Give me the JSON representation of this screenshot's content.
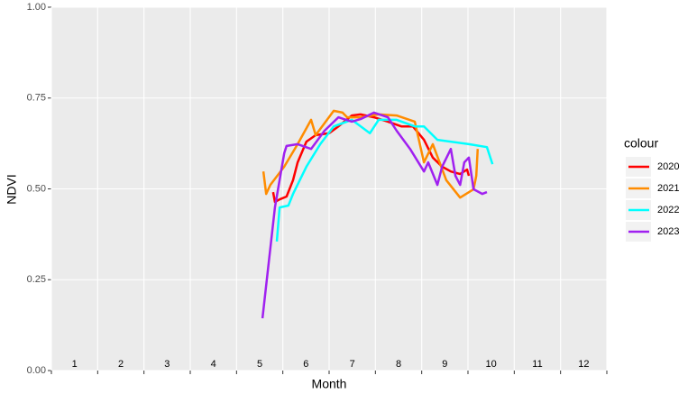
{
  "chart_data": {
    "type": "line",
    "x_label": "Month",
    "y_label": "NDVI",
    "legend_title": "colour",
    "categories": [
      "1",
      "2",
      "3",
      "4",
      "5",
      "6",
      "7",
      "8",
      "9",
      "10",
      "11",
      "12"
    ],
    "xlim": [
      0,
      12
    ],
    "xticks": [
      0,
      1,
      2,
      3,
      4,
      5,
      6,
      7,
      8,
      9,
      10,
      11,
      12
    ],
    "ylim": [
      0,
      1
    ],
    "yticks": [
      {
        "value": 0,
        "label": "0.00"
      },
      {
        "value": 0.25,
        "label": "0.25"
      },
      {
        "value": 0.5,
        "label": "0.50"
      },
      {
        "value": 0.75,
        "label": "0.75"
      },
      {
        "value": 1,
        "label": "1.00"
      }
    ],
    "grid": true,
    "series": [
      {
        "name": "2020",
        "color": "#ff0000",
        "x": [
          4.79,
          4.83,
          4.93,
          5.08,
          5.22,
          5.32,
          5.51,
          5.71,
          6.0,
          6.2,
          6.49,
          6.68,
          6.97,
          7.27,
          7.56,
          7.81,
          8.05,
          8.24,
          8.44,
          8.63,
          8.83,
          8.98,
          9.02
        ],
        "values": [
          0.491,
          0.464,
          0.471,
          0.479,
          0.524,
          0.573,
          0.63,
          0.648,
          0.653,
          0.672,
          0.702,
          0.705,
          0.697,
          0.685,
          0.672,
          0.672,
          0.635,
          0.586,
          0.561,
          0.548,
          0.541,
          0.553,
          0.536
        ]
      },
      {
        "name": "2021",
        "color": "#ff8c00",
        "x": [
          4.58,
          4.64,
          4.73,
          5.03,
          5.32,
          5.61,
          5.71,
          6.1,
          6.29,
          6.39,
          6.68,
          7.07,
          7.46,
          7.85,
          8.05,
          8.24,
          8.53,
          8.83,
          9.12,
          9.18,
          9.21
        ],
        "values": [
          0.548,
          0.486,
          0.511,
          0.561,
          0.623,
          0.69,
          0.648,
          0.715,
          0.71,
          0.697,
          0.697,
          0.705,
          0.702,
          0.685,
          0.573,
          0.623,
          0.524,
          0.476,
          0.499,
          0.536,
          0.61
        ]
      },
      {
        "name": "2022",
        "color": "#00ffff",
        "x": [
          4.87,
          4.93,
          5.12,
          5.22,
          5.51,
          5.81,
          6.1,
          6.49,
          6.88,
          7.07,
          7.46,
          7.85,
          8.05,
          8.34,
          9.02,
          9.41,
          9.53
        ],
        "values": [
          0.355,
          0.449,
          0.454,
          0.486,
          0.561,
          0.623,
          0.672,
          0.69,
          0.653,
          0.69,
          0.69,
          0.672,
          0.672,
          0.635,
          0.623,
          0.615,
          0.568
        ]
      },
      {
        "name": "2023",
        "color": "#a020f0",
        "x": [
          4.56,
          4.83,
          5.03,
          5.08,
          5.32,
          5.61,
          5.9,
          6.2,
          6.49,
          6.68,
          6.97,
          7.27,
          7.46,
          7.75,
          8.05,
          8.14,
          8.34,
          8.44,
          8.63,
          8.73,
          8.83,
          8.92,
          9.02,
          9.12,
          9.31,
          9.41
        ],
        "values": [
          0.144,
          0.449,
          0.598,
          0.618,
          0.623,
          0.61,
          0.66,
          0.697,
          0.685,
          0.692,
          0.71,
          0.697,
          0.66,
          0.61,
          0.548,
          0.573,
          0.511,
          0.561,
          0.61,
          0.536,
          0.511,
          0.573,
          0.586,
          0.499,
          0.486,
          0.491
        ]
      }
    ]
  }
}
